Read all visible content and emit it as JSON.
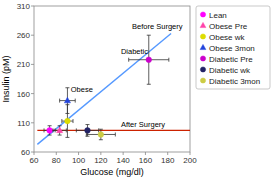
{
  "chart_data": {
    "type": "scatter",
    "xlabel": "Glucose (mg/dl)",
    "ylabel": "Insulin (pM)",
    "xlim": [
      60,
      200
    ],
    "ylim": [
      60,
      310
    ],
    "xticks": [
      60,
      80,
      100,
      120,
      140,
      160,
      180,
      200
    ],
    "yticks": [
      60,
      110,
      160,
      210,
      260,
      310
    ],
    "legend": "right",
    "lines": [
      {
        "type": "line",
        "color": "#5599ff",
        "x": [
          63,
          183
        ],
        "values": [
          73,
          263
        ]
      },
      {
        "type": "line",
        "color": "#cc2200",
        "x": [
          63,
          200
        ],
        "values": [
          97,
          97
        ]
      }
    ],
    "series": [
      {
        "name": "Lean",
        "color": "#ff00ff",
        "marker": "circle",
        "x": [
          74
        ],
        "values": [
          97
        ],
        "xerr": [
          5
        ],
        "yerr": [
          8
        ]
      },
      {
        "name": "Obese Pre",
        "color": "#ff44aa",
        "marker": "triangle",
        "x": [
          83
        ],
        "values": [
          97
        ],
        "xerr": [
          6
        ],
        "yerr": [
          8
        ]
      },
      {
        "name": "Obese wk",
        "color": "#dddd00",
        "marker": "circle",
        "x": [
          90
        ],
        "values": [
          113
        ],
        "xerr": [
          5
        ],
        "yerr": [
          28
        ]
      },
      {
        "name": "Obese 3mon",
        "color": "#2244dd",
        "marker": "triangle",
        "x": [
          90
        ],
        "values": [
          148
        ],
        "xerr": [
          7
        ],
        "yerr": [
          22
        ]
      },
      {
        "name": "Diabetic Pre",
        "color": "#cc00cc",
        "marker": "circle",
        "x": [
          163
        ],
        "values": [
          218
        ],
        "xerr": [
          18
        ],
        "yerr": [
          42
        ]
      },
      {
        "name": "Diabetic wk",
        "color": "#222266",
        "marker": "circle",
        "x": [
          108
        ],
        "values": [
          97
        ],
        "xerr": [
          10
        ],
        "yerr": [
          10
        ]
      },
      {
        "name": "Diabetic 3mon",
        "color": "#cccc44",
        "marker": "circle",
        "x": [
          120
        ],
        "values": [
          90
        ],
        "xerr": [
          13
        ],
        "yerr": [
          9
        ]
      }
    ],
    "annotations": [
      {
        "text": "Obese",
        "x": 93,
        "y": 162
      },
      {
        "text": "Diabetic",
        "x": 138,
        "y": 228
      },
      {
        "text": "Before Surgery",
        "x": 148,
        "y": 271
      },
      {
        "text": "After Surgery",
        "x": 138,
        "y": 103
      }
    ]
  }
}
